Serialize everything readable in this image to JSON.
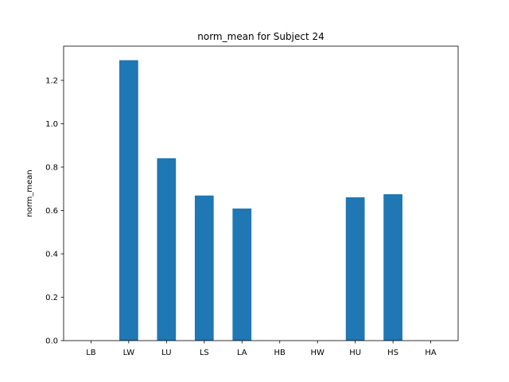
{
  "chart_data": {
    "type": "bar",
    "title": "norm_mean for Subject 24",
    "xlabel": "",
    "ylabel": "norm_mean",
    "categories": [
      "LB",
      "LW",
      "LU",
      "LS",
      "LA",
      "HB",
      "HW",
      "HU",
      "HS",
      "HA"
    ],
    "values": [
      0,
      1.293,
      0.841,
      0.669,
      0.609,
      0,
      0,
      0.661,
      0.675,
      0
    ],
    "ylim": [
      0,
      1.3577
    ],
    "yticks": [
      "0.0",
      "0.2",
      "0.4",
      "0.6",
      "0.8",
      "1.0",
      "1.2"
    ],
    "grid": false,
    "bar_color": "#1f77b4"
  }
}
